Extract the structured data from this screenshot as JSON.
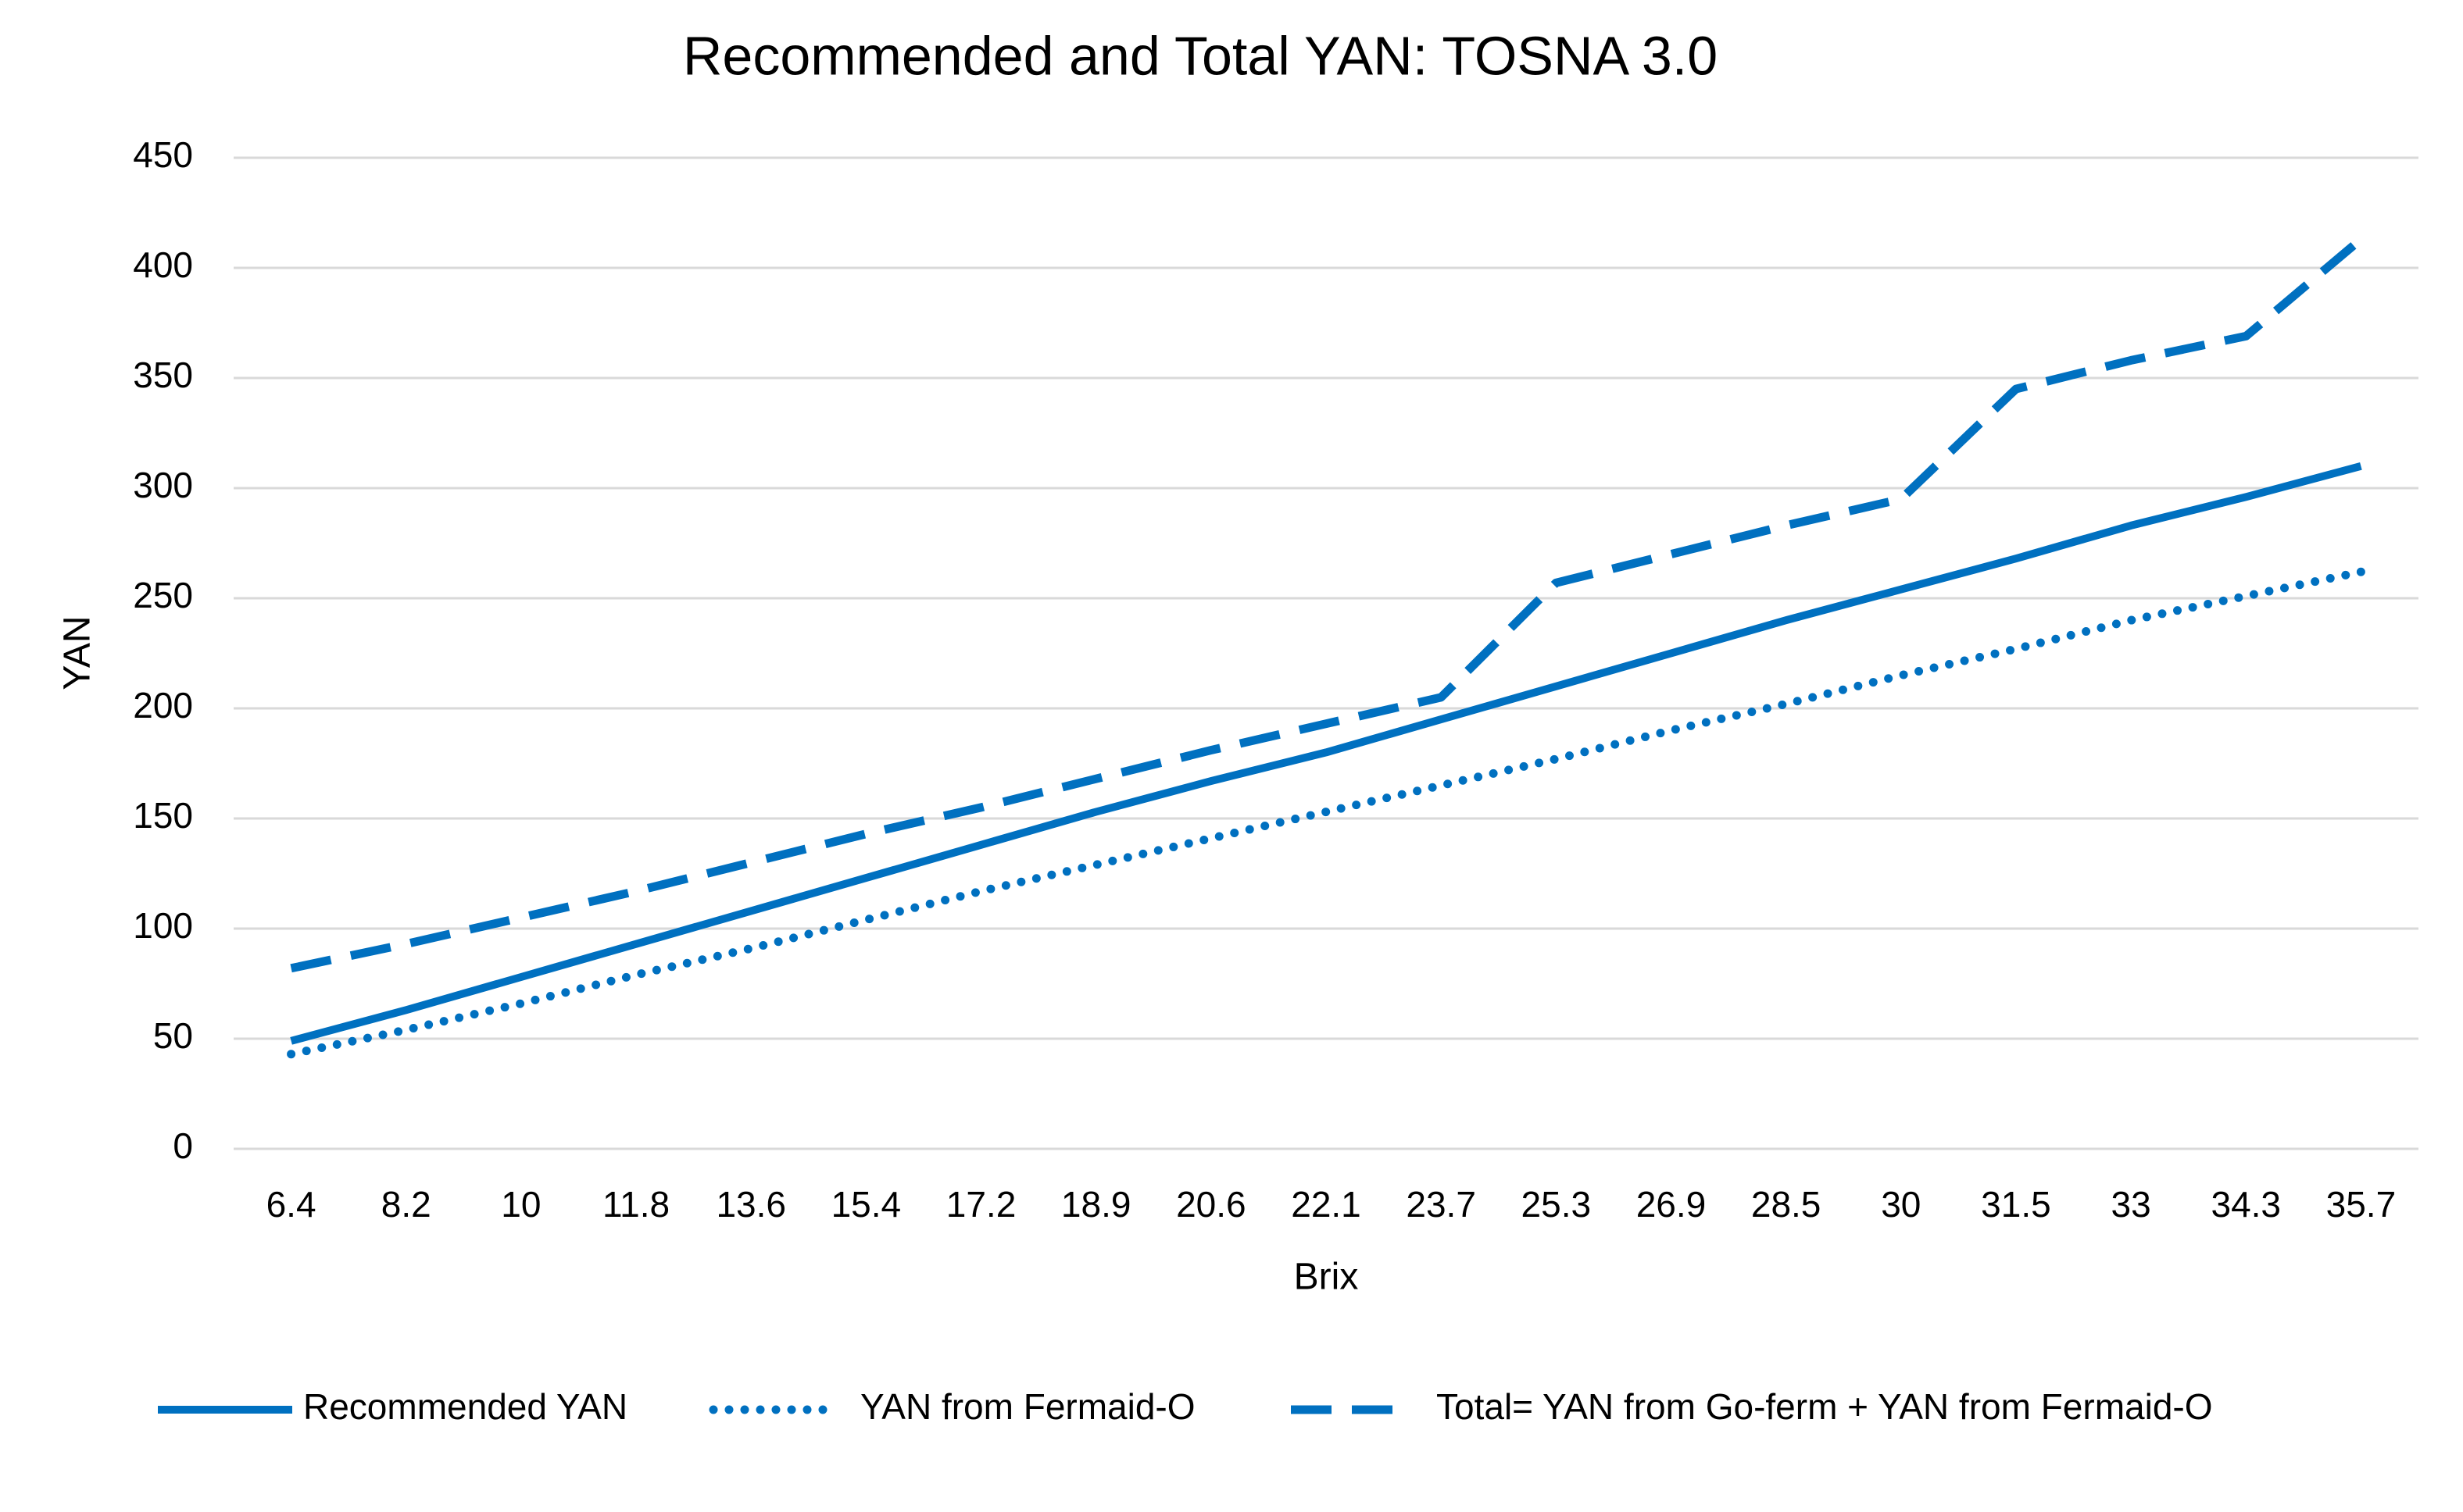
{
  "chart_data": {
    "type": "line",
    "title": "Recommended and Total YAN: TOSNA 3.0",
    "x_label": "Brix",
    "y_label": "YAN",
    "categories": [
      "6.4",
      "8.2",
      "10",
      "11.8",
      "13.6",
      "15.4",
      "17.2",
      "18.9",
      "20.6",
      "22.1",
      "23.7",
      "25.3",
      "26.9",
      "28.5",
      "30",
      "31.5",
      "33",
      "34.3",
      "35.7"
    ],
    "series": [
      {
        "name": "Recommended YAN",
        "color": "#0070c0",
        "style": "solid",
        "values": [
          49,
          63,
          78,
          93,
          108,
          123,
          138,
          153,
          167,
          180,
          195,
          210,
          225,
          240,
          254,
          268,
          283,
          296,
          310
        ]
      },
      {
        "name": "YAN from Fermaid-O",
        "color": "#0070c0",
        "style": "dotted",
        "values": [
          43,
          54,
          66,
          79,
          91,
          104,
          117,
          129,
          141,
          153,
          165,
          177,
          190,
          202,
          215,
          227,
          240,
          251,
          262
        ]
      },
      {
        "name": "Total= YAN from Go-ferm + YAN from Fermaid-O",
        "color": "#0070c0",
        "style": "dashed",
        "values": [
          82,
          93,
          105,
          117,
          130,
          143,
          155,
          168,
          181,
          193,
          205,
          257,
          270,
          283,
          295,
          345,
          358,
          369,
          413
        ]
      }
    ],
    "ylim": [
      0,
      450
    ],
    "yticks": [
      0,
      50,
      100,
      150,
      200,
      250,
      300,
      350,
      400,
      450
    ],
    "grid": true,
    "legend": "bottom"
  }
}
